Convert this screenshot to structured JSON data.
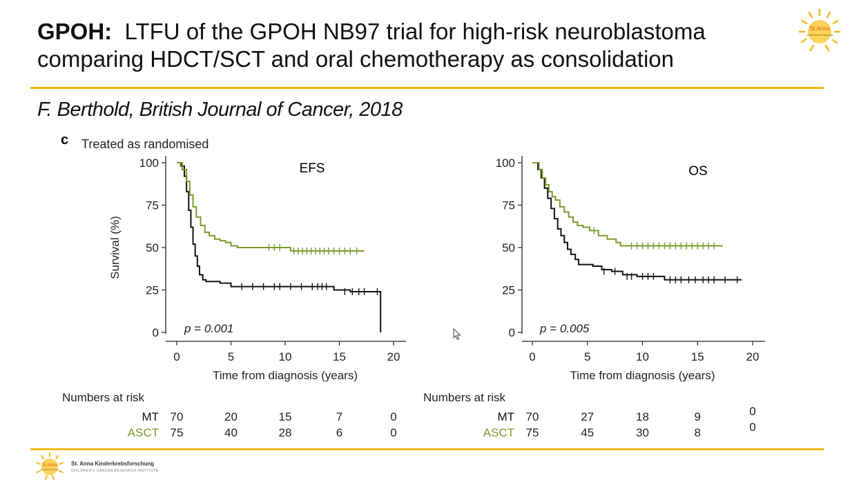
{
  "slide": {
    "title_bold": "GPOH:",
    "title_rest": "LTFU of the GPOH NB97 trial for high-risk neuroblastoma comparing HDCT/SCT and oral chemotherapy as consolidation",
    "citation": "F. Berthold, British Journal of Cancer, 2018",
    "panel_letter": "c",
    "panel_label": "Treated as randomised",
    "logo_text": "St.Anna",
    "logo_sub": "Kinderkrebs Forschung",
    "footer_name": "St. Anna Kinderkrebsforschung",
    "footer_sub": "CHILDREN'S CANCER RESEARCH INSTITUTE",
    "accent_color": "#f0b81c"
  },
  "chart_data": [
    {
      "type": "line",
      "title": "EFS",
      "xlabel": "Time from diagnosis (years)",
      "ylabel": "Survival (%)",
      "xlim": [
        0,
        20
      ],
      "ylim": [
        0,
        100
      ],
      "xticks": [
        0,
        5,
        10,
        15,
        20
      ],
      "yticks": [
        0,
        25,
        50,
        75,
        100
      ],
      "annotation": "p = 0.001",
      "series": [
        {
          "name": "MT",
          "color": "#111111",
          "x": [
            0,
            0.4,
            0.7,
            0.9,
            1.1,
            1.3,
            1.5,
            1.7,
            1.9,
            2.1,
            2.4,
            2.7,
            3.2,
            4.0,
            5.0,
            14.5,
            16.0,
            17.5,
            18.8,
            18.8
          ],
          "y": [
            100,
            98,
            92,
            83,
            72,
            62,
            52,
            45,
            39,
            34,
            31,
            30,
            30,
            29,
            27,
            25,
            24,
            24,
            24,
            0
          ],
          "censor_x": [
            6,
            7,
            8,
            9,
            9.5,
            10.5,
            11.5,
            12.5,
            13.0,
            13.4,
            13.8,
            15.5,
            16.2,
            16.8,
            17.3,
            18.5
          ],
          "censor_y": [
            27,
            27,
            27,
            27,
            27,
            27,
            27,
            27,
            27,
            27,
            27,
            24,
            24,
            24,
            24,
            24
          ]
        },
        {
          "name": "ASCT",
          "color": "#7a9a2a",
          "x": [
            0,
            0.5,
            0.9,
            1.2,
            1.5,
            1.8,
            2.2,
            2.6,
            3.0,
            3.5,
            4.0,
            4.5,
            5.0,
            5.6,
            7.0,
            10.5,
            17.3
          ],
          "y": [
            100,
            96,
            89,
            81,
            74,
            68,
            63,
            59,
            57,
            55,
            54,
            53,
            51,
            50,
            50,
            48,
            48
          ],
          "censor_x": [
            8.5,
            9.0,
            9.5,
            10.8,
            11.2,
            11.6,
            12.0,
            12.4,
            12.8,
            13.2,
            13.6,
            14.0,
            14.5,
            15.0,
            15.5,
            16.0,
            16.6
          ],
          "censor_y": [
            50,
            50,
            50,
            48,
            48,
            48,
            48,
            48,
            48,
            48,
            48,
            48,
            48,
            48,
            48,
            48,
            48
          ]
        }
      ],
      "risk_table": {
        "label": "Numbers at risk",
        "rows": [
          {
            "name": "MT",
            "values": [
              "70",
              "20",
              "15",
              "7",
              "0"
            ]
          },
          {
            "name": "ASCT",
            "values": [
              "75",
              "40",
              "28",
              "6",
              "0"
            ]
          }
        ]
      }
    },
    {
      "type": "line",
      "title": "OS",
      "xlabel": "Time from diagnosis (years)",
      "ylabel": "",
      "xlim": [
        0,
        20
      ],
      "ylim": [
        0,
        100
      ],
      "xticks": [
        0,
        5,
        10,
        15,
        20
      ],
      "yticks": [
        0,
        25,
        50,
        75,
        100
      ],
      "annotation": "p = 0.005",
      "series": [
        {
          "name": "MT",
          "color": "#111111",
          "x": [
            0,
            0.5,
            0.8,
            1.1,
            1.4,
            1.7,
            2.0,
            2.3,
            2.6,
            2.9,
            3.2,
            3.5,
            3.9,
            4.2,
            5.5,
            6.3,
            7.2,
            8.2,
            9.5,
            12.0,
            19.0
          ],
          "y": [
            100,
            96,
            91,
            85,
            79,
            73,
            67,
            61,
            57,
            53,
            49,
            46,
            43,
            40,
            39,
            37,
            36,
            34,
            33,
            31,
            31
          ],
          "censor_x": [
            6.5,
            7.5,
            8.6,
            9.0,
            10.0,
            10.5,
            11.0,
            12.5,
            13.0,
            13.5,
            14.2,
            14.8,
            15.5,
            16.0,
            16.5,
            17.5,
            18.6
          ],
          "censor_y": [
            36,
            36,
            33,
            33,
            33,
            33,
            33,
            31,
            31,
            31,
            31,
            31,
            31,
            31,
            31,
            31,
            31
          ]
        },
        {
          "name": "ASCT",
          "color": "#7a9a2a",
          "x": [
            0,
            0.6,
            0.9,
            1.2,
            1.5,
            1.8,
            2.1,
            2.5,
            2.9,
            3.3,
            3.7,
            4.1,
            4.6,
            5.2,
            6.0,
            6.8,
            7.6,
            8.0,
            17.3
          ],
          "y": [
            100,
            96,
            91,
            87,
            83,
            80,
            78,
            74,
            71,
            68,
            65,
            63,
            62,
            60,
            57,
            55,
            53,
            51,
            51
          ],
          "censor_x": [
            5.6,
            9.0,
            9.5,
            10.0,
            10.5,
            11.0,
            11.5,
            12.0,
            12.5,
            13.0,
            13.5,
            14.0,
            14.5,
            15.0,
            15.5,
            16.0,
            16.5
          ],
          "censor_y": [
            60,
            51,
            51,
            51,
            51,
            51,
            51,
            51,
            51,
            51,
            51,
            51,
            51,
            51,
            51,
            51,
            51
          ]
        }
      ],
      "risk_table": {
        "label": "Numbers at risk",
        "rows": [
          {
            "name": "MT",
            "values": [
              "70",
              "27",
              "18",
              "9",
              "0"
            ]
          },
          {
            "name": "ASCT",
            "values": [
              "75",
              "45",
              "30",
              "8",
              "0"
            ]
          }
        ]
      }
    }
  ]
}
